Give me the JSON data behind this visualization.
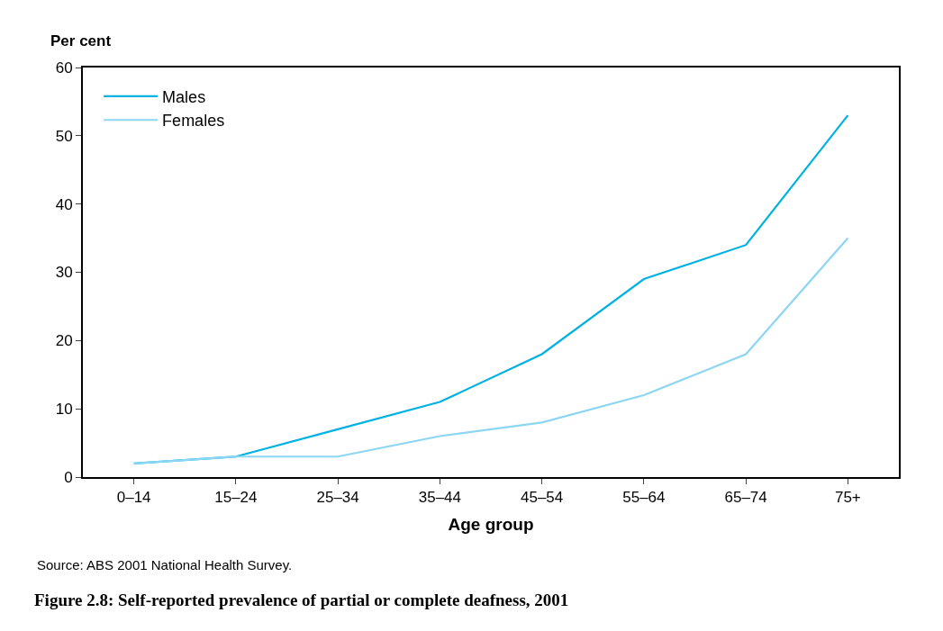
{
  "chart_data": {
    "type": "line",
    "title": "Figure 2.8: Self-reported prevalence of partial or complete deafness, 2001",
    "xlabel": "Age group",
    "ylabel": "Per cent",
    "categories": [
      "0–14",
      "15–24",
      "25–34",
      "35–44",
      "45–54",
      "55–64",
      "65–74",
      "75+"
    ],
    "series": [
      {
        "name": "Males",
        "color": "#00b2e3",
        "values": [
          2,
          3,
          7,
          11,
          18,
          29,
          34,
          53
        ]
      },
      {
        "name": "Females",
        "color": "#8dd6f3",
        "values": [
          2,
          3,
          3,
          6,
          8,
          12,
          18,
          35
        ]
      }
    ],
    "ylim": [
      0,
      60
    ],
    "yticks": [
      0,
      10,
      20,
      30,
      40,
      50,
      60
    ],
    "legend": "top left",
    "marker": "none",
    "line_style": "solid",
    "annotations": [
      "Source: ABS 2001 National Health Survey."
    ]
  }
}
